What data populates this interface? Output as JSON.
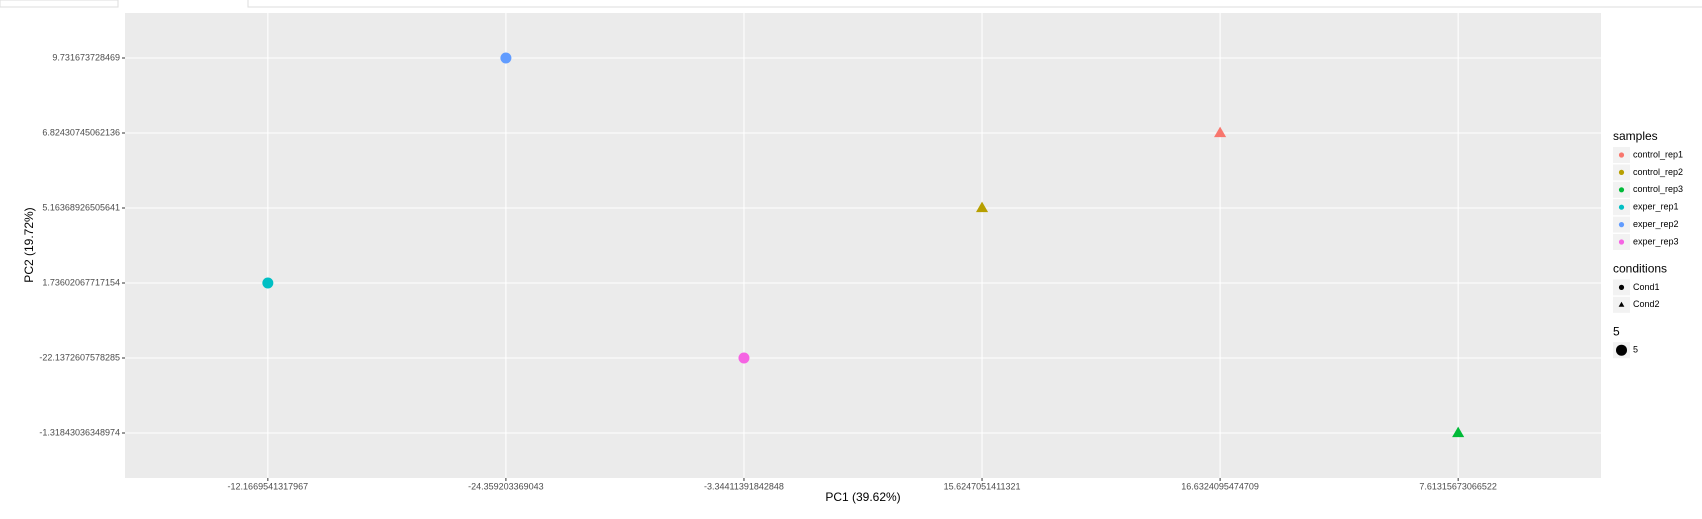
{
  "chart_data": {
    "type": "scatter",
    "x_label": "PC1 (39.62%)",
    "y_label": "PC2 (19.72%)",
    "x_categories": [
      "-12.1669541317967",
      "-24.359203369043",
      "-3.34411391842848",
      "15.6247051411321",
      "16.6324095474709",
      "7.61315673066522"
    ],
    "y_categories": [
      "-1.31843036348974",
      "-22.1372607578285",
      "1.73602067717154",
      "5.16368926505641",
      "6.82430745062136",
      "9.731673728469"
    ],
    "grid": true,
    "series": [
      {
        "name": "control_rep1",
        "color": "#F8766D",
        "condition": "Cond2",
        "x": "16.6324095474709",
        "y": "6.82430745062136"
      },
      {
        "name": "control_rep2",
        "color": "#B79F00",
        "condition": "Cond2",
        "x": "15.6247051411321",
        "y": "5.16368926505641"
      },
      {
        "name": "control_rep3",
        "color": "#00BA38",
        "condition": "Cond2",
        "x": "7.61315673066522",
        "y": "-1.31843036348974"
      },
      {
        "name": "exper_rep1",
        "color": "#00BFC4",
        "condition": "Cond1",
        "x": "-12.1669541317967",
        "y": "1.73602067717154"
      },
      {
        "name": "exper_rep2",
        "color": "#619CFF",
        "condition": "Cond1",
        "x": "-24.359203369043",
        "y": "9.731673728469"
      },
      {
        "name": "exper_rep3",
        "color": "#F564E3",
        "condition": "Cond1",
        "x": "-3.34411391842848",
        "y": "-22.1372607578285"
      }
    ],
    "color_legend_title": "samples",
    "shape_legend": {
      "title": "conditions",
      "items": [
        "Cond1",
        "Cond2"
      ],
      "shapes": [
        "circle",
        "triangle"
      ]
    },
    "size_legend": {
      "title": "5",
      "items": [
        "5"
      ]
    }
  }
}
